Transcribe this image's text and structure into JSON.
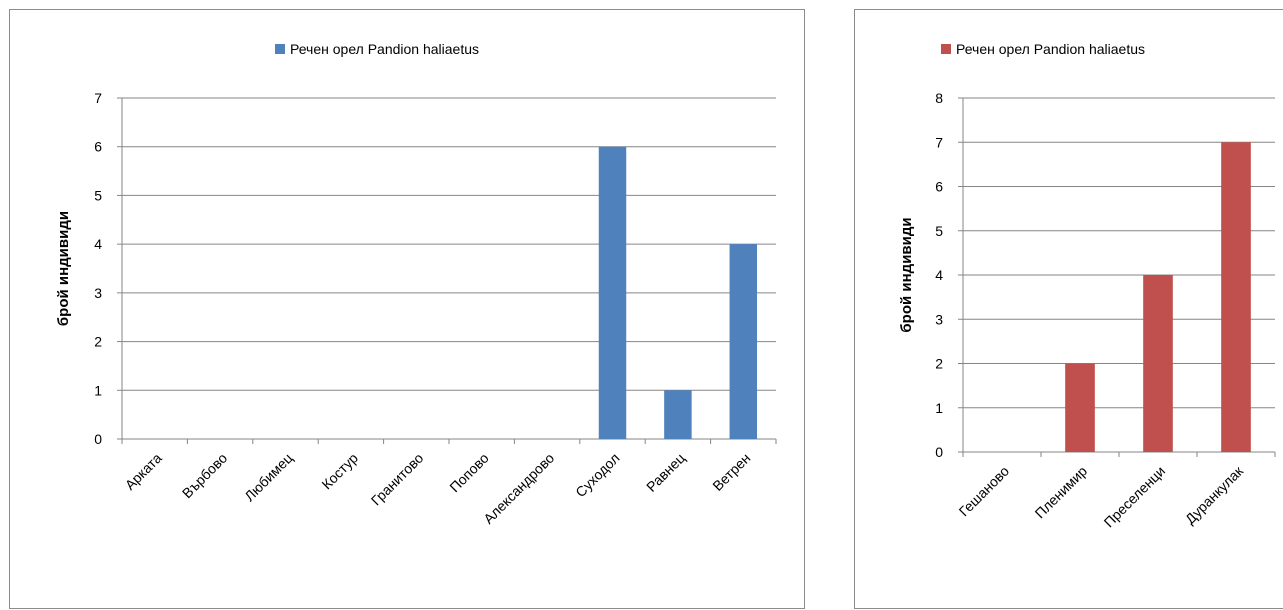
{
  "chart_data": [
    {
      "type": "bar",
      "title": "",
      "xlabel": "",
      "ylabel": "брой индивиди",
      "ylim": [
        0,
        7
      ],
      "grid": true,
      "legend_position": "top",
      "categories": [
        "Арката",
        "Върбово",
        "Любимец",
        "Костур",
        "Гранитово",
        "Попово",
        "Александрово",
        "Суходол",
        "Равнец",
        "Ветрен"
      ],
      "series": [
        {
          "name": "Речен орел Pandion haliaetus",
          "color": "#4f81bd",
          "values": [
            0,
            0,
            0,
            0,
            0,
            0,
            0,
            6,
            1,
            4
          ]
        }
      ]
    },
    {
      "type": "bar",
      "title": "",
      "xlabel": "",
      "ylabel": "брой индивиди",
      "ylim": [
        0,
        8
      ],
      "grid": true,
      "legend_position": "top",
      "categories": [
        "Гешаново",
        "Пленимир",
        "Преселенци",
        "Дуранкулак"
      ],
      "series": [
        {
          "name": "Речен орел Pandion haliaetus",
          "color": "#c0504d",
          "values": [
            0,
            2,
            4,
            7
          ]
        }
      ]
    }
  ]
}
